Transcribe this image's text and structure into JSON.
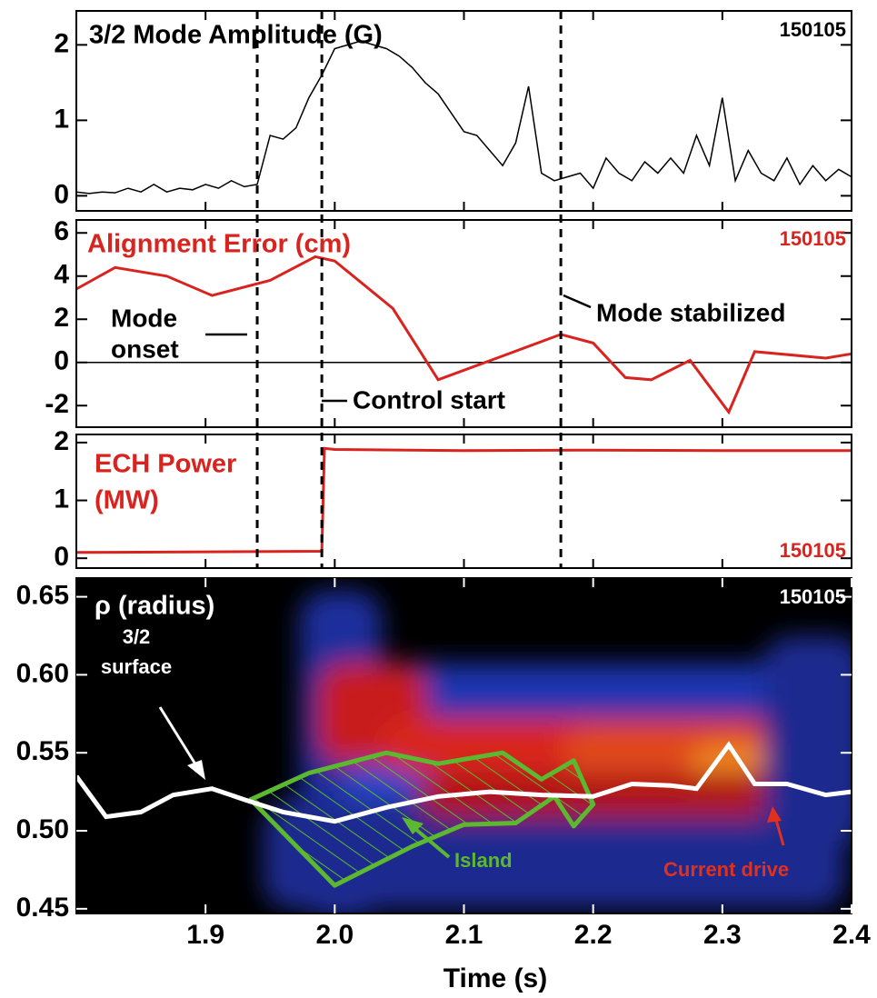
{
  "chart_data": [
    {
      "type": "line",
      "title": "3/2 Mode Amplitude (G)",
      "shot": "150105",
      "color": "#000000",
      "xlim": [
        1.8,
        2.4
      ],
      "ylim": [
        -0.2,
        2.45
      ],
      "yticks": [
        0,
        1,
        2
      ],
      "vlines": [
        1.94,
        1.99,
        2.175
      ],
      "x": [
        1.8,
        1.81,
        1.82,
        1.83,
        1.84,
        1.85,
        1.86,
        1.87,
        1.88,
        1.89,
        1.9,
        1.91,
        1.92,
        1.93,
        1.94,
        1.95,
        1.96,
        1.97,
        1.98,
        1.99,
        2.0,
        2.01,
        2.02,
        2.03,
        2.04,
        2.05,
        2.06,
        2.07,
        2.08,
        2.09,
        2.1,
        2.11,
        2.12,
        2.13,
        2.14,
        2.15,
        2.16,
        2.17,
        2.18,
        2.19,
        2.2,
        2.21,
        2.22,
        2.23,
        2.24,
        2.25,
        2.26,
        2.27,
        2.28,
        2.29,
        2.3,
        2.31,
        2.32,
        2.33,
        2.34,
        2.35,
        2.36,
        2.37,
        2.38,
        2.39,
        2.4
      ],
      "values": [
        0.05,
        0.03,
        0.05,
        0.04,
        0.1,
        0.05,
        0.15,
        0.05,
        0.1,
        0.08,
        0.15,
        0.1,
        0.2,
        0.12,
        0.15,
        0.8,
        0.75,
        0.9,
        1.3,
        1.6,
        1.95,
        2.0,
        2.05,
        2.0,
        1.95,
        1.85,
        1.7,
        1.5,
        1.35,
        1.1,
        0.85,
        0.8,
        0.6,
        0.4,
        0.7,
        1.45,
        0.3,
        0.2,
        0.25,
        0.3,
        0.1,
        0.5,
        0.3,
        0.2,
        0.45,
        0.3,
        0.5,
        0.3,
        0.8,
        0.4,
        1.3,
        0.2,
        0.6,
        0.3,
        0.2,
        0.5,
        0.15,
        0.4,
        0.2,
        0.35,
        0.25
      ]
    },
    {
      "type": "line",
      "title": "Alignment Error (cm)",
      "shot": "150105",
      "color": "#d8231e",
      "xlim": [
        1.8,
        2.4
      ],
      "ylim": [
        -3,
        6.6
      ],
      "yticks": [
        -2,
        0,
        2,
        4,
        6
      ],
      "x": [
        1.8,
        1.83,
        1.87,
        1.905,
        1.95,
        1.985,
        2.0,
        2.045,
        2.08,
        2.13,
        2.175,
        2.2,
        2.225,
        2.245,
        2.275,
        2.305,
        2.325,
        2.38,
        2.4
      ],
      "values": [
        3.4,
        4.4,
        4.0,
        3.1,
        3.8,
        4.9,
        4.7,
        2.5,
        -0.8,
        0.3,
        1.3,
        0.9,
        -0.7,
        -0.8,
        0.1,
        -2.3,
        0.5,
        0.2,
        0.4
      ],
      "annotations": [
        "Mode",
        "onset",
        "Control start",
        "Mode stabilized"
      ]
    },
    {
      "type": "line",
      "title": [
        "ECH Power",
        "(MW)"
      ],
      "shot": "150105",
      "color": "#d8231e",
      "xlim": [
        1.8,
        2.4
      ],
      "ylim": [
        -0.17,
        2.14
      ],
      "yticks": [
        0,
        1,
        2
      ],
      "x": [
        1.8,
        1.99,
        1.992,
        2.0,
        2.1,
        2.2,
        2.3,
        2.4
      ],
      "values": [
        0.1,
        0.12,
        1.9,
        1.88,
        1.86,
        1.87,
        1.86,
        1.86
      ]
    },
    {
      "type": "heatmap",
      "title": "ρ (radius)",
      "shot": "150105",
      "xlabel": "Time (s)",
      "xlim": [
        1.8,
        2.4
      ],
      "ylim": [
        0.447,
        0.662
      ],
      "xticks": [
        1.9,
        {
          "value": 2,
          "label": "2.0"
        },
        2.1,
        2.2,
        2.3,
        2.4
      ],
      "yticks": [
        0.45,
        {
          "value": 0.5,
          "label": "0.50"
        },
        0.55,
        {
          "value": 0.6,
          "label": "0.60"
        },
        0.65
      ],
      "surface": {
        "color": "#ffffff",
        "x": [
          1.8,
          1.823,
          1.85,
          1.875,
          1.905,
          1.93,
          1.96,
          2.0,
          2.04,
          2.08,
          2.12,
          2.16,
          2.2,
          2.23,
          2.26,
          2.28,
          2.305,
          2.325,
          2.35,
          2.38,
          2.4
        ],
        "values": [
          0.535,
          0.509,
          0.512,
          0.523,
          0.527,
          0.52,
          0.512,
          0.506,
          0.515,
          0.522,
          0.525,
          0.523,
          0.522,
          0.53,
          0.529,
          0.527,
          0.555,
          0.53,
          0.53,
          0.523,
          0.525
        ]
      },
      "island": {
        "color": "#5cb830",
        "x": [
          1.935,
          1.98,
          2.04,
          2.08,
          2.13,
          2.16,
          2.185,
          2.2,
          2.185,
          2.17,
          2.14,
          2.1,
          2.06,
          2.0,
          1.935
        ],
        "values": [
          0.52,
          0.537,
          0.55,
          0.543,
          0.55,
          0.533,
          0.545,
          0.517,
          0.503,
          0.522,
          0.505,
          0.504,
          0.49,
          0.465,
          0.52
        ]
      },
      "annotations": [
        "3/2",
        "surface",
        "Island",
        "Current drive"
      ]
    }
  ]
}
